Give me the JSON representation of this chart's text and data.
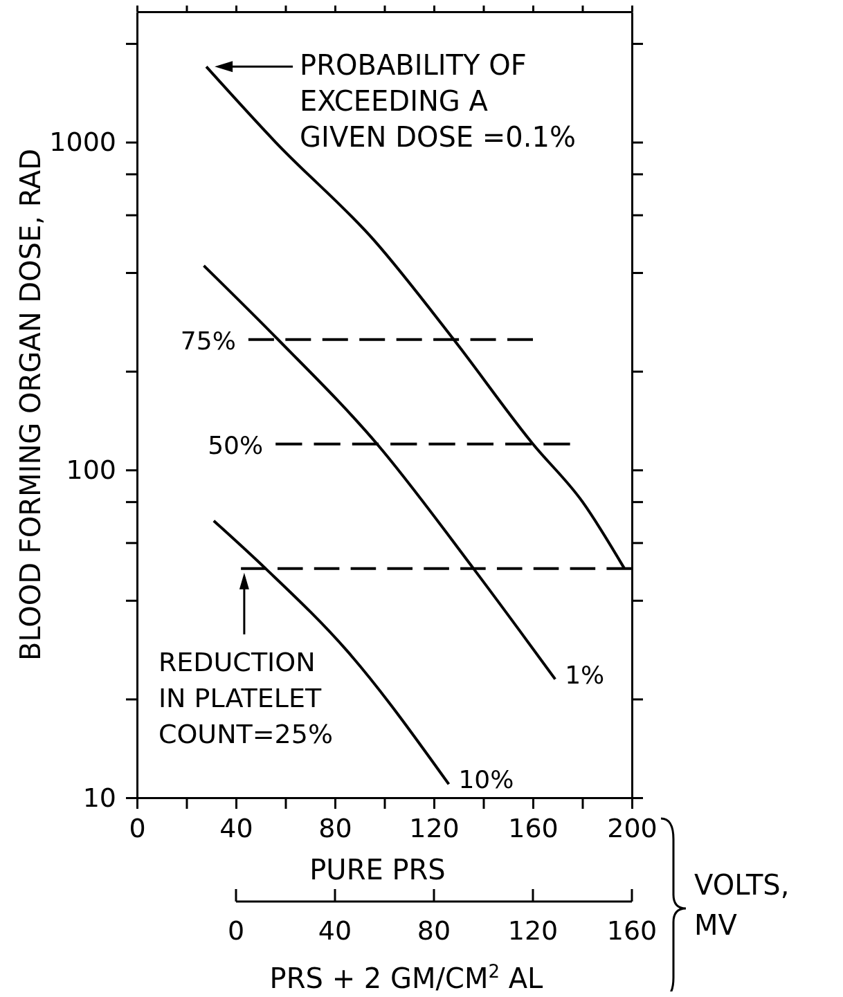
{
  "chart_data": {
    "type": "line",
    "log": "y",
    "xlabel": "PURE PRS",
    "ylabel": "BLOOD FORMING ORGAN DOSE, RAD",
    "x2label": "PRS + 2 GM/CM$^{2}$ AL",
    "xlim": [
      0,
      200
    ],
    "xticks": [
      0,
      {
        "value": 20,
        "label": null
      },
      40,
      {
        "value": 60,
        "label": null
      },
      80,
      {
        "value": 100,
        "label": null
      },
      120,
      {
        "value": 140,
        "label": null
      },
      160,
      {
        "value": 180,
        "label": null
      },
      200
    ],
    "ylim": [
      10,
      2500
    ],
    "yticks": [
      10,
      {
        "value": 20,
        "label": null
      },
      {
        "value": 40,
        "label": null
      },
      {
        "value": 60,
        "label": null
      },
      {
        "value": 80,
        "label": null
      },
      100,
      {
        "value": 200,
        "label": null
      },
      {
        "value": 400,
        "label": null
      },
      {
        "value": 600,
        "label": null
      },
      {
        "value": 800,
        "label": null
      },
      1000,
      {
        "value": 2000,
        "label": null
      }
    ],
    "x2lim": [
      0,
      160
    ],
    "x2ticks": [
      0,
      40,
      80,
      120,
      160
    ],
    "grid": false,
    "marker": "none",
    "color": "#000000",
    "series": [
      {
        "x": [
          28,
          56,
          96,
          128,
          160,
          180,
          197
        ],
        "values": [
          1700,
          1000,
          500,
          250,
          120,
          80,
          50
        ],
        "line_style": "solid"
      },
      {
        "name": "1%",
        "x": [
          27,
          57,
          97,
          136,
          169
        ],
        "values": [
          420,
          250,
          120,
          50,
          23
        ],
        "line_style": "solid"
      },
      {
        "name": "10%",
        "x": [
          31,
          52,
          85,
          126
        ],
        "values": [
          70,
          50,
          28,
          11
        ],
        "line_style": "solid"
      },
      {
        "name": "75%",
        "x": [
          45,
          160
        ],
        "values": [
          250,
          250
        ],
        "line_style": "dashed"
      },
      {
        "name": "50%",
        "x": [
          56,
          175
        ],
        "values": [
          120,
          120
        ],
        "line_style": "dashed"
      },
      {
        "x": [
          42,
          200
        ],
        "values": [
          50,
          50
        ],
        "line_style": "dashed"
      }
    ],
    "annotations": [
      "PROBABILITY OF\nEXCEEDING A\nGIVEN DOSE =0.1%",
      {
        "text": "REDUCTION\nIN PLATELET\nCOUNT=25%",
        "x": 45,
        "y": 50
      },
      "VOLTS,\nMV"
    ]
  }
}
